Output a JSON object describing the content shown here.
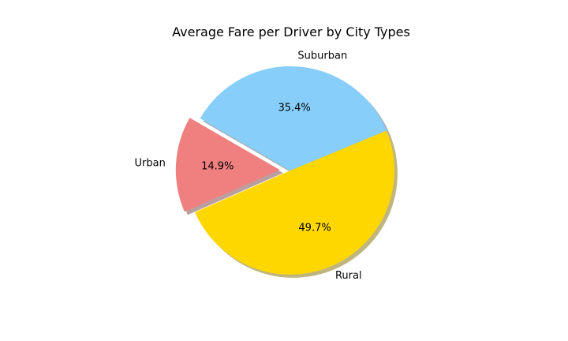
{
  "chart_data": {
    "type": "pie",
    "title": "Average Fare per Driver by City Types",
    "slices": [
      {
        "label": "Urban",
        "value": 14.9,
        "pct_label": "14.9%",
        "color": "#f08080",
        "explode": true
      },
      {
        "label": "Rural",
        "value": 49.7,
        "pct_label": "49.7%",
        "color": "#ffd700",
        "explode": false
      },
      {
        "label": "Suburban",
        "value": 35.4,
        "pct_label": "35.4%",
        "color": "#87cefa",
        "explode": false
      }
    ],
    "start_angle_deg": 150,
    "direction": "counterclockwise",
    "shadow": true,
    "legend": "none"
  }
}
